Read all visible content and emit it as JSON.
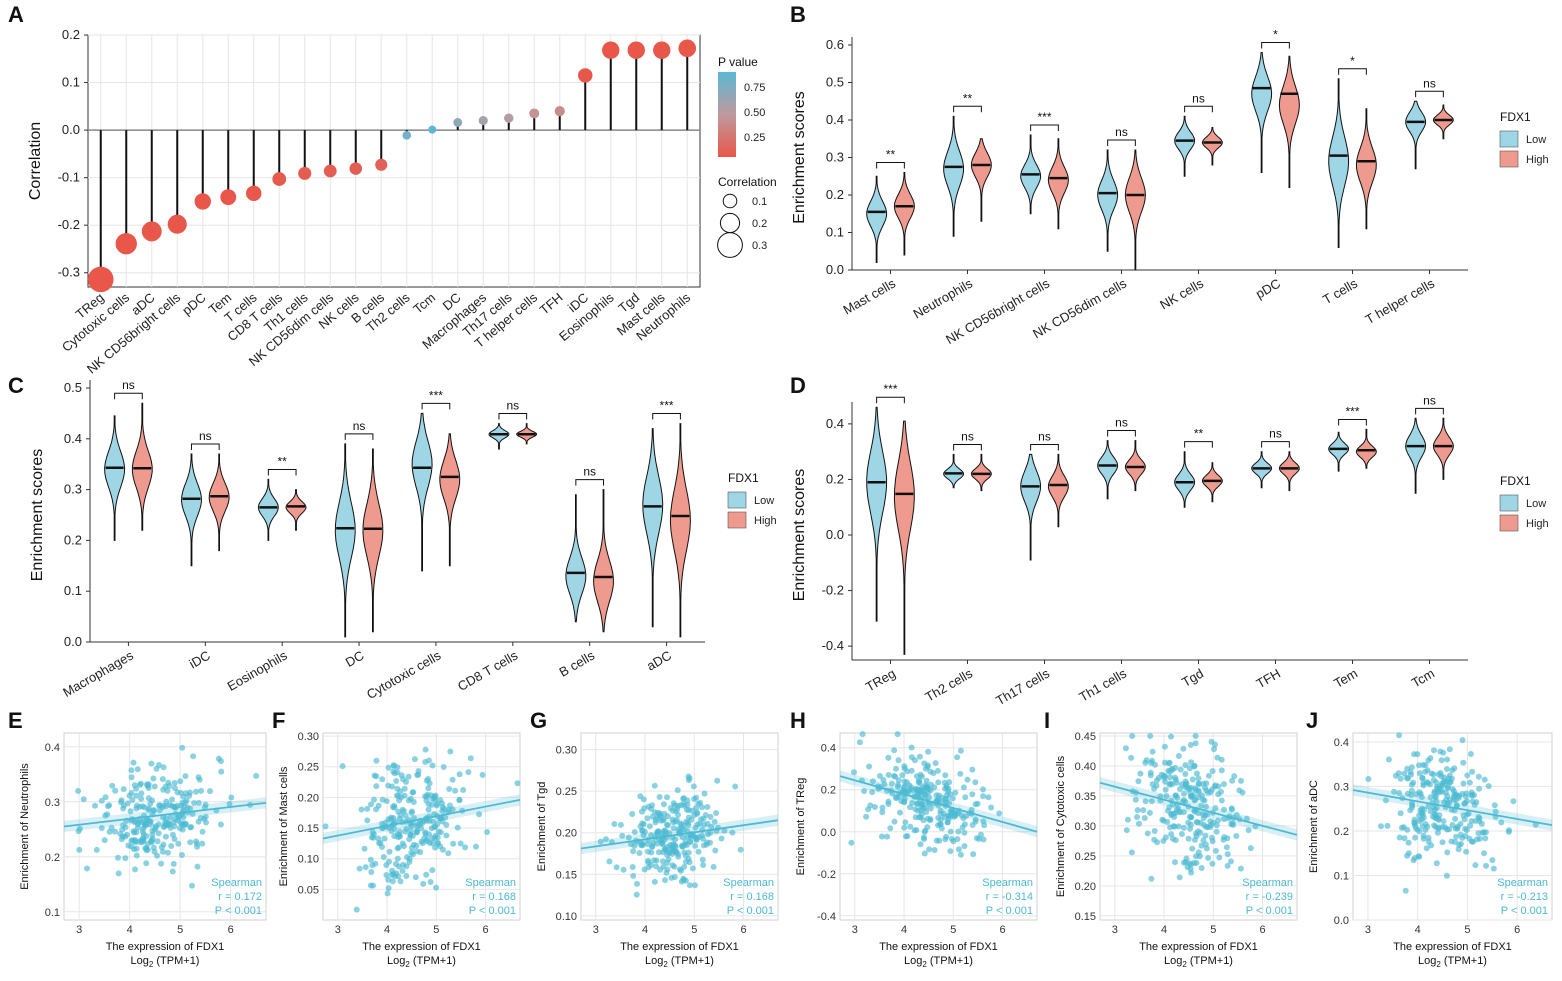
{
  "colors": {
    "low": "#9fd6e6",
    "high": "#ef9a8e",
    "scatter": "#4cbad3",
    "pval_low": "#e8574a",
    "pval_high": "#5bb8d4",
    "grid": "#e6e6e6"
  },
  "legend_fdx1": {
    "title": "FDX1",
    "low_label": "Low",
    "high_label": "High"
  },
  "chart_data": [
    {
      "panel": "A",
      "type": "scatter",
      "title": "",
      "xlabel": "",
      "ylabel": "Correlation",
      "ylim": [
        -0.33,
        0.2
      ],
      "yticks": [
        -0.3,
        -0.2,
        -0.1,
        0.0,
        0.1,
        0.2
      ],
      "ytick_labels": [
        "-0.3",
        "-0.2",
        "-0.1",
        "0.0",
        "0.1",
        "0.2"
      ],
      "categories": [
        "TReg",
        "Cytotoxic cells",
        "aDC",
        "NK CD56bright cells",
        "pDC",
        "Tem",
        "T cells",
        "CD8 T cells",
        "Th1 cells",
        "NK CD56dim cells",
        "NK cells",
        "B cells",
        "Th2 cells",
        "Tcm",
        "DC",
        "Macrophages",
        "Th17 cells",
        "T helper cells",
        "TFH",
        "iDC",
        "Eosinophils",
        "Tgd",
        "Mast cells",
        "Neutrophils"
      ],
      "values": [
        -0.314,
        -0.239,
        -0.213,
        -0.198,
        -0.15,
        -0.141,
        -0.133,
        -0.103,
        -0.091,
        -0.086,
        -0.081,
        -0.073,
        -0.011,
        0.001,
        0.016,
        0.02,
        0.025,
        0.035,
        0.04,
        0.115,
        0.168,
        0.168,
        0.168,
        0.172
      ],
      "pvalues": [
        0.001,
        0.001,
        0.001,
        0.001,
        0.001,
        0.002,
        0.003,
        0.02,
        0.04,
        0.05,
        0.06,
        0.08,
        0.8,
        0.95,
        0.7,
        0.6,
        0.55,
        0.45,
        0.4,
        0.01,
        0.001,
        0.001,
        0.001,
        0.001
      ],
      "legend": {
        "color_title": "P value",
        "color_ticks": [
          0.75,
          0.5,
          0.25
        ],
        "color_tick_labels": [
          "0.75",
          "0.50",
          "0.25"
        ],
        "size_title": "Correlation",
        "size_ticks": [
          0.1,
          0.2,
          0.3
        ],
        "size_tick_labels": [
          "0.1",
          "0.2",
          "0.3"
        ]
      }
    },
    {
      "panel": "B",
      "type": "violin",
      "ylabel": "Enrichment scores",
      "ylim": [
        0.0,
        0.6
      ],
      "yticks": [
        0.0,
        0.1,
        0.2,
        0.3,
        0.4,
        0.5,
        0.6
      ],
      "ytick_labels": [
        "0.0",
        "0.1",
        "0.2",
        "0.3",
        "0.4",
        "0.5",
        "0.6"
      ],
      "categories": [
        "Mast cells",
        "Neutrophils",
        "NK CD56bright cells",
        "NK CD56dim cells",
        "NK cells",
        "pDC",
        "T cells",
        "T helper cells"
      ],
      "series": [
        {
          "name": "Low",
          "min": [
            0.02,
            0.09,
            0.15,
            0.05,
            0.25,
            0.26,
            0.06,
            0.27
          ],
          "median": [
            0.155,
            0.275,
            0.255,
            0.205,
            0.345,
            0.485,
            0.305,
            0.395
          ],
          "max": [
            0.25,
            0.41,
            0.36,
            0.32,
            0.41,
            0.58,
            0.51,
            0.45
          ],
          "mode": [
            0.15,
            0.27,
            0.25,
            0.2,
            0.345,
            0.47,
            0.29,
            0.395
          ]
        },
        {
          "name": "High",
          "min": [
            0.04,
            0.13,
            0.11,
            0.0,
            0.28,
            0.22,
            0.11,
            0.35
          ],
          "median": [
            0.17,
            0.28,
            0.245,
            0.2,
            0.34,
            0.47,
            0.29,
            0.4
          ],
          "max": [
            0.26,
            0.35,
            0.35,
            0.32,
            0.38,
            0.57,
            0.43,
            0.44
          ],
          "mode": [
            0.17,
            0.28,
            0.24,
            0.2,
            0.34,
            0.44,
            0.28,
            0.4
          ]
        }
      ],
      "significance": [
        "**",
        "**",
        "***",
        "ns",
        "ns",
        "*",
        "*",
        "ns"
      ]
    },
    {
      "panel": "C",
      "type": "violin",
      "ylabel": "Enrichment scores",
      "ylim": [
        0.0,
        0.5
      ],
      "yticks": [
        0.0,
        0.1,
        0.2,
        0.3,
        0.4,
        0.5
      ],
      "ytick_labels": [
        "0.0",
        "0.1",
        "0.2",
        "0.3",
        "0.4",
        "0.5"
      ],
      "categories": [
        "Macrophages",
        "iDC",
        "Eosinophils",
        "DC",
        "Cytotoxic cells",
        "CD8 T cells",
        "B cells",
        "aDC"
      ],
      "series": [
        {
          "name": "Low",
          "min": [
            0.2,
            0.15,
            0.2,
            0.01,
            0.14,
            0.38,
            0.04,
            0.03
          ],
          "median": [
            0.343,
            0.282,
            0.265,
            0.224,
            0.343,
            0.409,
            0.136,
            0.267
          ],
          "max": [
            0.445,
            0.37,
            0.32,
            0.39,
            0.45,
            0.43,
            0.29,
            0.42
          ],
          "mode": [
            0.34,
            0.28,
            0.265,
            0.22,
            0.35,
            0.409,
            0.13,
            0.27
          ]
        },
        {
          "name": "High",
          "min": [
            0.22,
            0.18,
            0.22,
            0.02,
            0.15,
            0.39,
            0.02,
            0.01
          ],
          "median": [
            0.342,
            0.287,
            0.267,
            0.223,
            0.325,
            0.409,
            0.128,
            0.248
          ],
          "max": [
            0.47,
            0.37,
            0.3,
            0.38,
            0.41,
            0.43,
            0.3,
            0.43
          ],
          "mode": [
            0.34,
            0.285,
            0.265,
            0.22,
            0.32,
            0.409,
            0.12,
            0.24
          ]
        }
      ],
      "significance": [
        "ns",
        "ns",
        "**",
        "ns",
        "***",
        "ns",
        "ns",
        "***"
      ]
    },
    {
      "panel": "D",
      "type": "violin",
      "ylabel": "Enrichment scores",
      "ylim": [
        -0.45,
        0.45
      ],
      "yticks": [
        -0.4,
        -0.2,
        0.0,
        0.2,
        0.4
      ],
      "ytick_labels": [
        "-0.4",
        "-0.2",
        "0.0",
        "0.2",
        "0.4"
      ],
      "categories": [
        "TReg",
        "Th2 cells",
        "Th17 cells",
        "Th1 cells",
        "Tgd",
        "TFH",
        "Tem",
        "Tcm"
      ],
      "series": [
        {
          "name": "Low",
          "min": [
            -0.31,
            0.17,
            -0.09,
            0.13,
            0.1,
            0.17,
            0.23,
            0.15
          ],
          "median": [
            0.19,
            0.222,
            0.175,
            0.25,
            0.19,
            0.24,
            0.31,
            0.32
          ],
          "max": [
            0.46,
            0.29,
            0.29,
            0.34,
            0.3,
            0.3,
            0.37,
            0.42
          ],
          "mode": [
            0.19,
            0.22,
            0.175,
            0.25,
            0.19,
            0.24,
            0.31,
            0.32
          ]
        },
        {
          "name": "High",
          "min": [
            -0.43,
            0.16,
            0.03,
            0.16,
            0.12,
            0.16,
            0.24,
            0.2
          ],
          "median": [
            0.148,
            0.22,
            0.18,
            0.245,
            0.195,
            0.24,
            0.305,
            0.32
          ],
          "max": [
            0.41,
            0.29,
            0.29,
            0.34,
            0.26,
            0.3,
            0.38,
            0.42
          ],
          "mode": [
            0.14,
            0.22,
            0.175,
            0.245,
            0.195,
            0.24,
            0.3,
            0.32
          ]
        }
      ],
      "significance": [
        "***",
        "ns",
        "ns",
        "ns",
        "**",
        "ns",
        "***",
        "ns"
      ]
    },
    {
      "panel": "E",
      "type": "scatter",
      "xlabel": "The expression of FDX1",
      "xlabel_sub": "Log",
      "xlabel_tail": "(TPM+1)",
      "ylabel": "Enrichment of Neutrophils",
      "xlim": [
        2.7,
        6.7
      ],
      "ylim": [
        0.085,
        0.425
      ],
      "xticks": [
        3,
        4,
        5,
        6
      ],
      "xtick_labels": [
        "3",
        "4",
        "5",
        "6"
      ],
      "yticks": [
        0.1,
        0.2,
        0.3,
        0.4
      ],
      "ytick_labels": [
        "0.1",
        "0.2",
        "0.3",
        "0.4"
      ],
      "center": [
        4.55,
        0.28
      ],
      "spread": [
        0.55,
        0.045
      ],
      "n": 260,
      "fit": [
        [
          2.7,
          0.255
        ],
        [
          6.7,
          0.298
        ]
      ],
      "method": "Spearman",
      "r_text": "r = 0.172",
      "p_text": "P < 0.001"
    },
    {
      "panel": "F",
      "type": "scatter",
      "xlabel": "The expression of FDX1",
      "xlabel_sub": "Log",
      "xlabel_tail": "(TPM+1)",
      "ylabel": "Enrichment of Mast cells",
      "xlim": [
        2.7,
        6.7
      ],
      "ylim": [
        0.0,
        0.305
      ],
      "xticks": [
        3,
        4,
        5,
        6
      ],
      "xtick_labels": [
        "3",
        "4",
        "5",
        "6"
      ],
      "yticks": [
        0.05,
        0.1,
        0.15,
        0.2,
        0.25,
        0.3
      ],
      "ytick_labels": [
        "0.05",
        "0.10",
        "0.15",
        "0.20",
        "0.25",
        "0.30"
      ],
      "center": [
        4.5,
        0.165
      ],
      "spread": [
        0.55,
        0.05
      ],
      "n": 260,
      "fit": [
        [
          2.7,
          0.133
        ],
        [
          6.7,
          0.196
        ]
      ],
      "method": "Spearman",
      "r_text": "r = 0.168",
      "p_text": "P < 0.001"
    },
    {
      "panel": "G",
      "type": "scatter",
      "xlabel": "The expression of FDX1",
      "xlabel_sub": "Log",
      "xlabel_tail": "(TPM+1)",
      "ylabel": "Enrichment of Tgd",
      "xlim": [
        2.7,
        6.7
      ],
      "ylim": [
        0.095,
        0.32
      ],
      "xticks": [
        3,
        4,
        5,
        6
      ],
      "xtick_labels": [
        "3",
        "4",
        "5",
        "6"
      ],
      "yticks": [
        0.1,
        0.15,
        0.2,
        0.25,
        0.3
      ],
      "ytick_labels": [
        "0.10",
        "0.15",
        "0.20",
        "0.25",
        "0.30"
      ],
      "center": [
        4.55,
        0.198
      ],
      "spread": [
        0.55,
        0.025
      ],
      "n": 260,
      "fit": [
        [
          2.7,
          0.181
        ],
        [
          6.7,
          0.215
        ]
      ],
      "method": "Spearman",
      "r_text": "r = 0.168",
      "p_text": "P < 0.001"
    },
    {
      "panel": "H",
      "type": "scatter",
      "xlabel": "The expression of FDX1",
      "xlabel_sub": "Log",
      "xlabel_tail": "(TPM+1)",
      "ylabel": "Enrichment of TReg",
      "xlim": [
        2.7,
        6.7
      ],
      "ylim": [
        -0.42,
        0.47
      ],
      "xticks": [
        3,
        4,
        5,
        6
      ],
      "xtick_labels": [
        "3",
        "4",
        "5",
        "6"
      ],
      "yticks": [
        -0.4,
        -0.2,
        0.0,
        0.2,
        0.4
      ],
      "ytick_labels": [
        "-0.4",
        "-0.2",
        "0.0",
        "0.2",
        "0.4"
      ],
      "center": [
        4.5,
        0.17
      ],
      "spread": [
        0.55,
        0.11
      ],
      "n": 260,
      "fit": [
        [
          2.7,
          0.265
        ],
        [
          6.7,
          0.0
        ]
      ],
      "method": "Spearman",
      "r_text": "r = -0.314",
      "p_text": "P < 0.001"
    },
    {
      "panel": "I",
      "type": "scatter",
      "xlabel": "The expression of FDX1",
      "xlabel_sub": "Log",
      "xlabel_tail": "(TPM+1)",
      "ylabel": "Enrichment of Cytotoxic cells",
      "xlim": [
        2.7,
        6.7
      ],
      "ylim": [
        0.143,
        0.455
      ],
      "xticks": [
        3,
        4,
        5,
        6
      ],
      "xtick_labels": [
        "3",
        "4",
        "5",
        "6"
      ],
      "yticks": [
        0.15,
        0.2,
        0.25,
        0.3,
        0.35,
        0.4,
        0.45
      ],
      "ytick_labels": [
        "0.15",
        "0.20",
        "0.25",
        "0.30",
        "0.35",
        "0.40",
        "0.45"
      ],
      "center": [
        4.5,
        0.335
      ],
      "spread": [
        0.55,
        0.05
      ],
      "n": 260,
      "fit": [
        [
          2.7,
          0.372
        ],
        [
          6.7,
          0.285
        ]
      ],
      "method": "Spearman",
      "r_text": "r = -0.239",
      "p_text": "P < 0.001"
    },
    {
      "panel": "J",
      "type": "scatter",
      "xlabel": "The expression of FDX1",
      "xlabel_sub": "Log",
      "xlabel_tail": "(TPM+1)",
      "ylabel": "Enrichment of aDC",
      "xlim": [
        2.7,
        6.7
      ],
      "ylim": [
        0.0,
        0.42
      ],
      "xticks": [
        3,
        4,
        5,
        6
      ],
      "xtick_labels": [
        "3",
        "4",
        "5",
        "6"
      ],
      "yticks": [
        0.0,
        0.1,
        0.2,
        0.3,
        0.4
      ],
      "ytick_labels": [
        "0.0",
        "0.1",
        "0.2",
        "0.3",
        "0.4"
      ],
      "center": [
        4.5,
        0.258
      ],
      "spread": [
        0.55,
        0.06
      ],
      "n": 260,
      "fit": [
        [
          2.7,
          0.292
        ],
        [
          6.7,
          0.213
        ]
      ],
      "method": "Spearman",
      "r_text": "r = -0.213",
      "p_text": "P < 0.001"
    }
  ]
}
